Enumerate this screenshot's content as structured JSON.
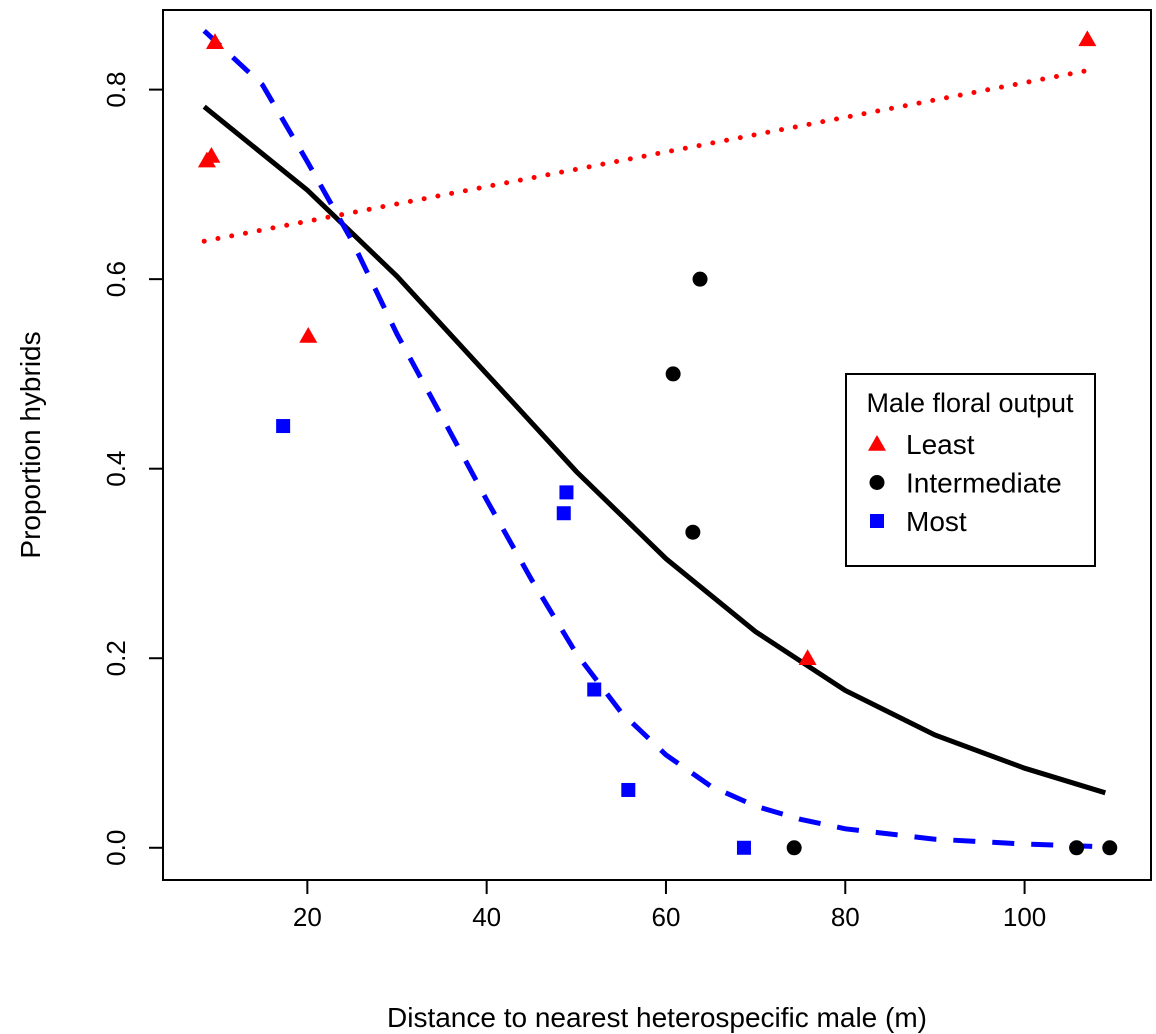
{
  "chart_data": {
    "type": "scatter",
    "title": "",
    "xlabel": "Distance to nearest heterospecific male (m)",
    "ylabel": "Proportion hybrids",
    "xlim": [
      3.9,
      114.1
    ],
    "ylim": [
      -0.034,
      0.884
    ],
    "x_ticks": [
      20,
      40,
      60,
      80,
      100
    ],
    "y_ticks": [
      0.0,
      0.2,
      0.4,
      0.6,
      0.8
    ],
    "x_tick_labels": [
      "20",
      "40",
      "60",
      "80",
      "100"
    ],
    "y_tick_labels": [
      "0.0",
      "0.2",
      "0.4",
      "0.6",
      "0.8"
    ],
    "grid": false,
    "legend": {
      "title": "Male floral output",
      "position": "right",
      "entries": [
        "Least",
        "Intermediate",
        "Most"
      ]
    },
    "series": [
      {
        "name": "Least",
        "marker": "triangle",
        "color": "#ff0000",
        "points": [
          {
            "x": 8.8,
            "y": 0.725
          },
          {
            "x": 9.3,
            "y": 0.73
          },
          {
            "x": 9.7,
            "y": 0.85
          },
          {
            "x": 20.1,
            "y": 0.54
          },
          {
            "x": 75.8,
            "y": 0.2
          },
          {
            "x": 107.0,
            "y": 0.853
          }
        ],
        "fit": {
          "style": "dotted",
          "points": [
            {
              "x": 8.5,
              "y": 0.64
            },
            {
              "x": 108.0,
              "y": 0.822
            }
          ]
        }
      },
      {
        "name": "Intermediate",
        "marker": "circle",
        "color": "#000000",
        "points": [
          {
            "x": 60.8,
            "y": 0.5
          },
          {
            "x": 63.0,
            "y": 0.333
          },
          {
            "x": 63.8,
            "y": 0.6
          },
          {
            "x": 74.3,
            "y": 0.0
          },
          {
            "x": 105.8,
            "y": 0.0
          },
          {
            "x": 109.5,
            "y": 0.0
          }
        ],
        "fit": {
          "style": "solid",
          "points": [
            {
              "x": 8.5,
              "y": 0.782
            },
            {
              "x": 20,
              "y": 0.694
            },
            {
              "x": 30,
              "y": 0.603
            },
            {
              "x": 40,
              "y": 0.5
            },
            {
              "x": 50,
              "y": 0.397
            },
            {
              "x": 60,
              "y": 0.305
            },
            {
              "x": 70,
              "y": 0.228
            },
            {
              "x": 80,
              "y": 0.166
            },
            {
              "x": 90,
              "y": 0.119
            },
            {
              "x": 100,
              "y": 0.084
            },
            {
              "x": 109,
              "y": 0.058
            }
          ]
        }
      },
      {
        "name": "Most",
        "marker": "square",
        "color": "#0000ff",
        "points": [
          {
            "x": 17.3,
            "y": 0.445
          },
          {
            "x": 48.6,
            "y": 0.353
          },
          {
            "x": 48.9,
            "y": 0.375
          },
          {
            "x": 52.0,
            "y": 0.167
          },
          {
            "x": 55.8,
            "y": 0.061
          },
          {
            "x": 68.7,
            "y": 0.0
          }
        ],
        "fit": {
          "style": "dashed",
          "points": [
            {
              "x": 8.5,
              "y": 0.862
            },
            {
              "x": 15,
              "y": 0.805
            },
            {
              "x": 20,
              "y": 0.724
            },
            {
              "x": 25,
              "y": 0.64
            },
            {
              "x": 30,
              "y": 0.542
            },
            {
              "x": 35,
              "y": 0.455
            },
            {
              "x": 40,
              "y": 0.367
            },
            {
              "x": 45,
              "y": 0.283
            },
            {
              "x": 50,
              "y": 0.205
            },
            {
              "x": 55,
              "y": 0.143
            },
            {
              "x": 60,
              "y": 0.098
            },
            {
              "x": 65,
              "y": 0.065
            },
            {
              "x": 70,
              "y": 0.044
            },
            {
              "x": 75,
              "y": 0.03
            },
            {
              "x": 80,
              "y": 0.02
            },
            {
              "x": 90,
              "y": 0.009
            },
            {
              "x": 100,
              "y": 0.004
            },
            {
              "x": 109,
              "y": 0.001
            }
          ]
        }
      }
    ]
  }
}
